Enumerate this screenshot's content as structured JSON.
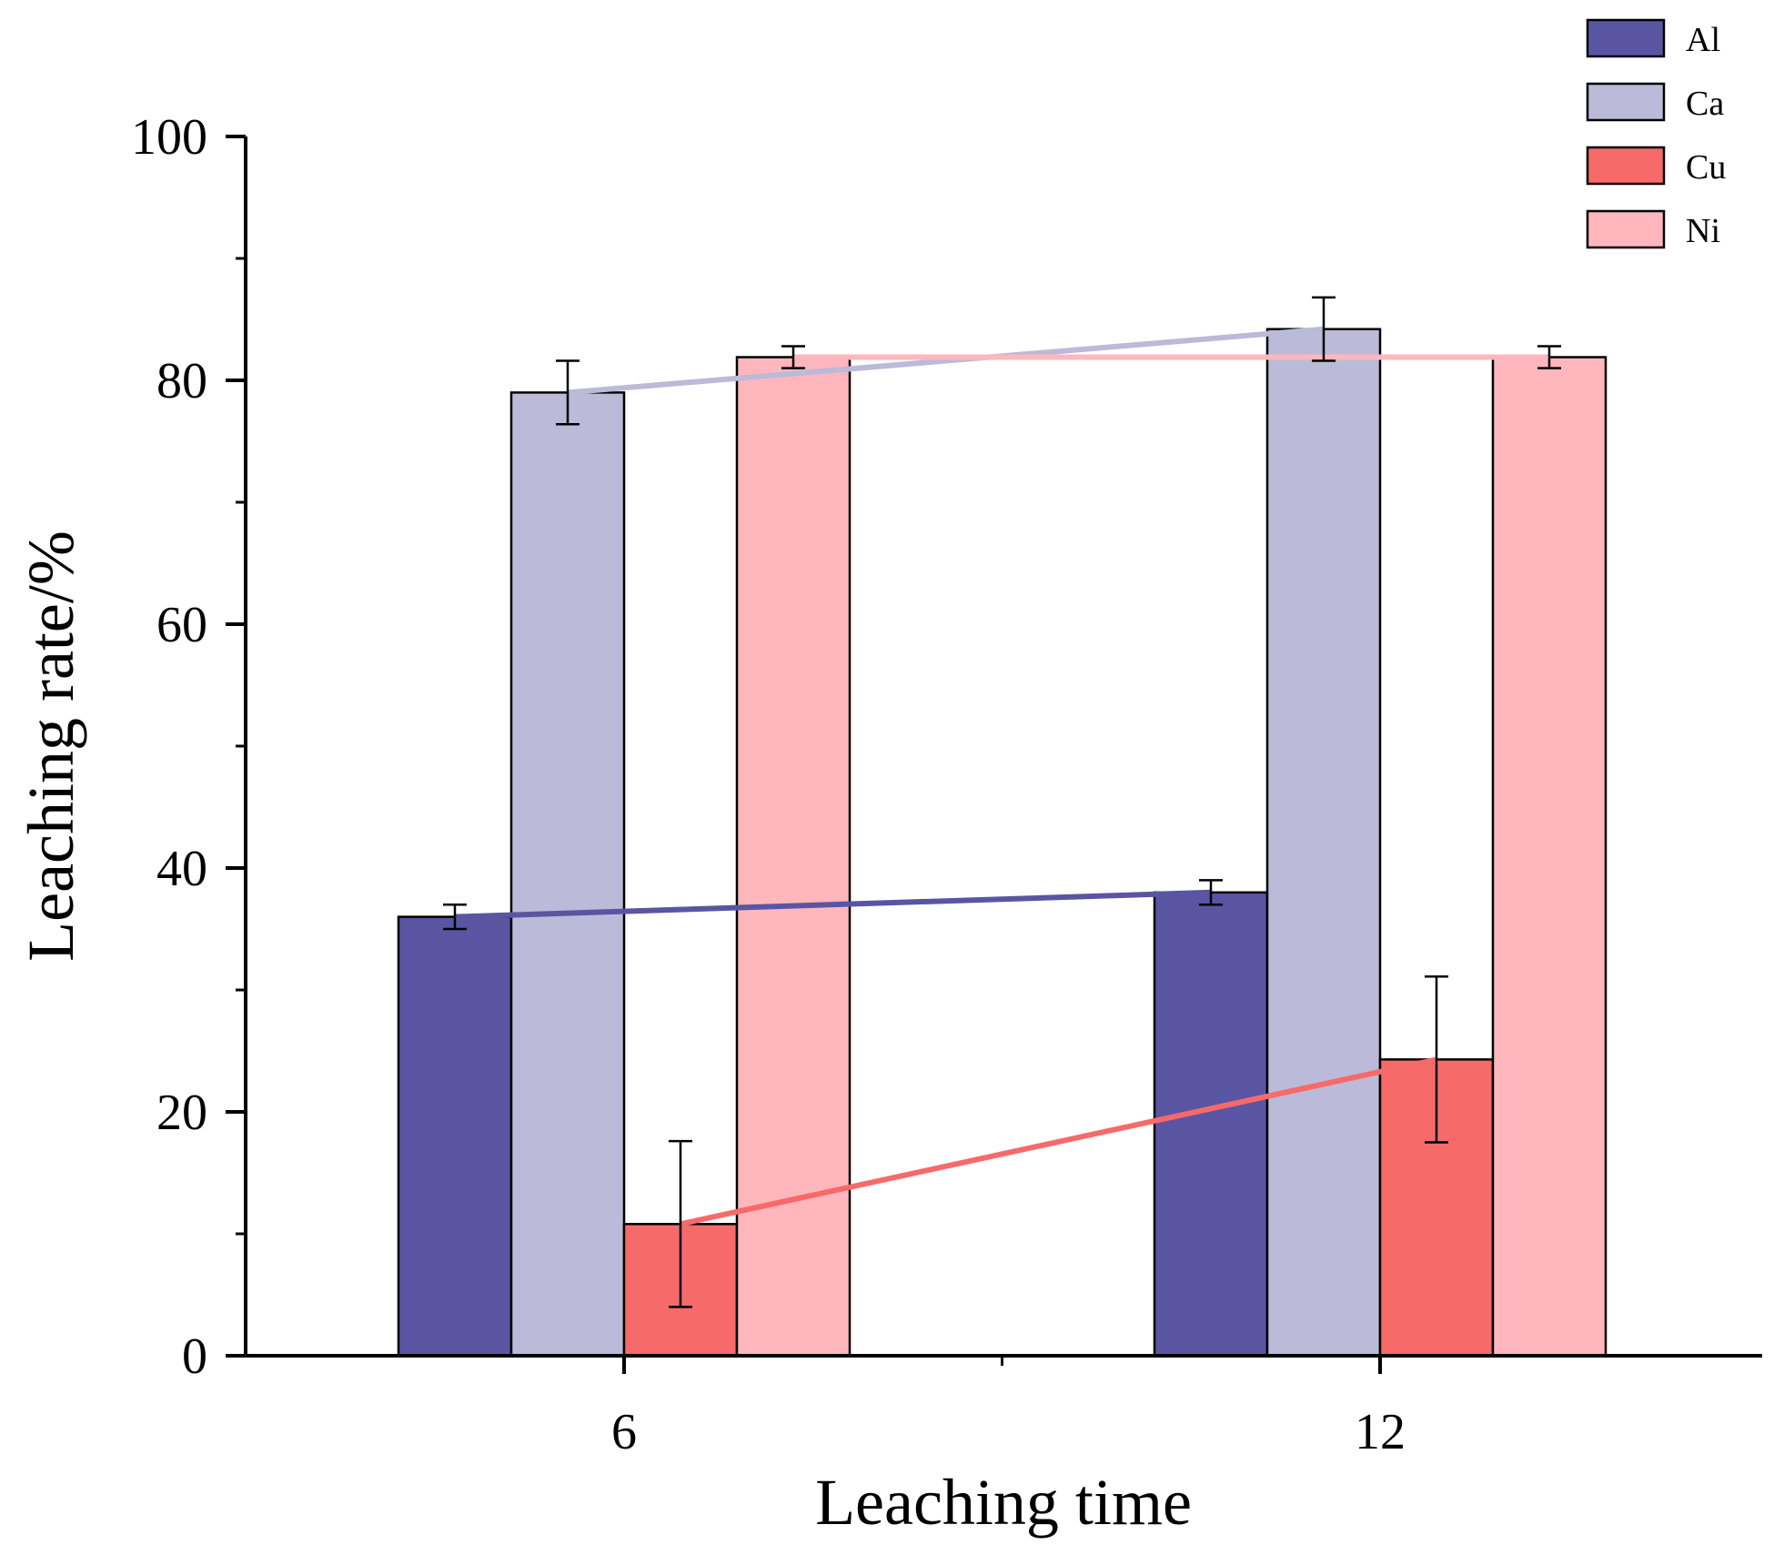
{
  "chart_data": {
    "type": "bar",
    "title": "",
    "xlabel": "Leaching time",
    "ylabel": "Leaching rate/%",
    "categories": [
      "6",
      "12"
    ],
    "ylim": [
      0,
      100
    ],
    "yticks": [
      0,
      20,
      40,
      60,
      80,
      100
    ],
    "grid": false,
    "legend_position": "top-right",
    "series": [
      {
        "name": "Al",
        "color": "#5A55A3",
        "values": [
          36,
          38
        ],
        "errors": [
          1,
          1
        ]
      },
      {
        "name": "Ca",
        "color": "#BBBAD8",
        "values": [
          79,
          84.2
        ],
        "errors": [
          2.6,
          2.6
        ]
      },
      {
        "name": "Cu",
        "color": "#F76A6A",
        "values": [
          10.8,
          24.3
        ],
        "errors": [
          6.8,
          6.8
        ]
      },
      {
        "name": "Ni",
        "color": "#FFB6BC",
        "values": [
          81.9,
          81.9
        ],
        "errors": [
          0.9,
          0.9
        ]
      }
    ]
  }
}
